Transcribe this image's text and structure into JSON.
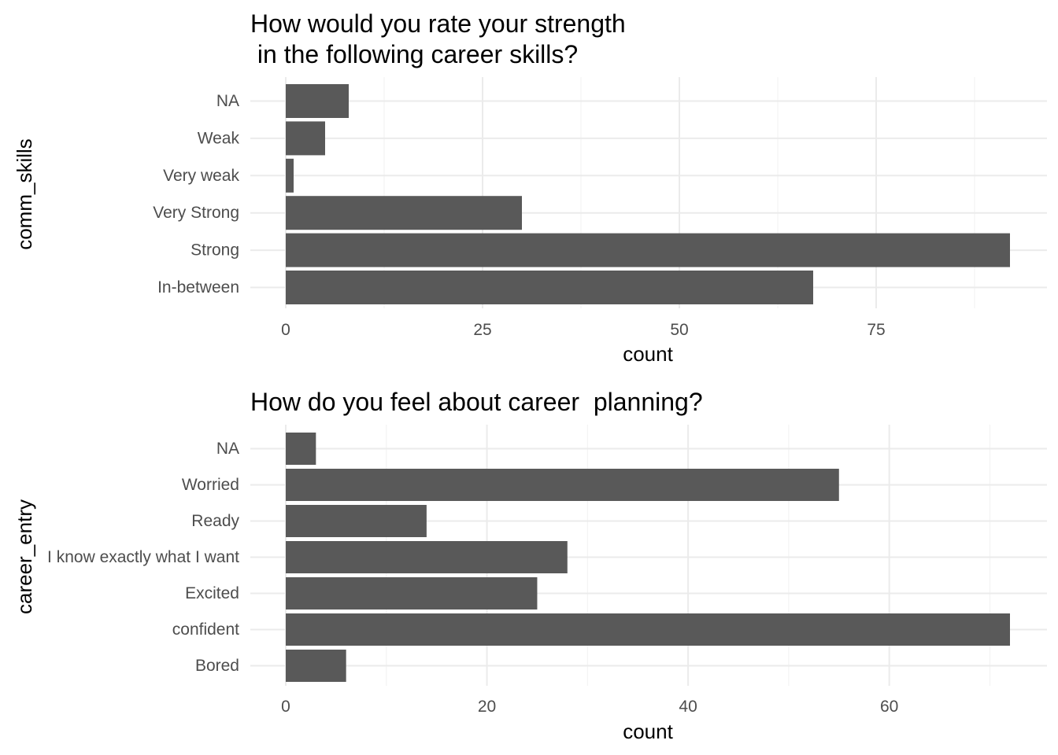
{
  "chart_data": [
    {
      "type": "bar",
      "orientation": "horizontal",
      "title_lines": [
        "How would you rate your strength",
        " in the following career skills?"
      ],
      "xlabel": "count",
      "ylabel": "comm_skills",
      "categories": [
        "In-between",
        "Strong",
        "Very Strong",
        "Very weak",
        "Weak",
        "NA"
      ],
      "values": [
        67,
        92,
        30,
        1,
        5,
        8
      ],
      "xlim": [
        0,
        92
      ],
      "xticks": [
        0,
        25,
        50,
        75
      ],
      "grid": true,
      "bar_color": "#595959"
    },
    {
      "type": "bar",
      "orientation": "horizontal",
      "title_lines": [
        "How do you feel about career  planning?"
      ],
      "xlabel": "count",
      "ylabel": "career_entry",
      "categories": [
        "Bored",
        "confident",
        "Excited",
        "I know exactly what I want",
        "Ready",
        "Worried",
        "NA"
      ],
      "values": [
        6,
        72,
        25,
        28,
        14,
        55,
        3
      ],
      "xlim": [
        0,
        72
      ],
      "xticks": [
        0,
        20,
        40,
        60
      ],
      "grid": true,
      "bar_color": "#595959"
    }
  ]
}
